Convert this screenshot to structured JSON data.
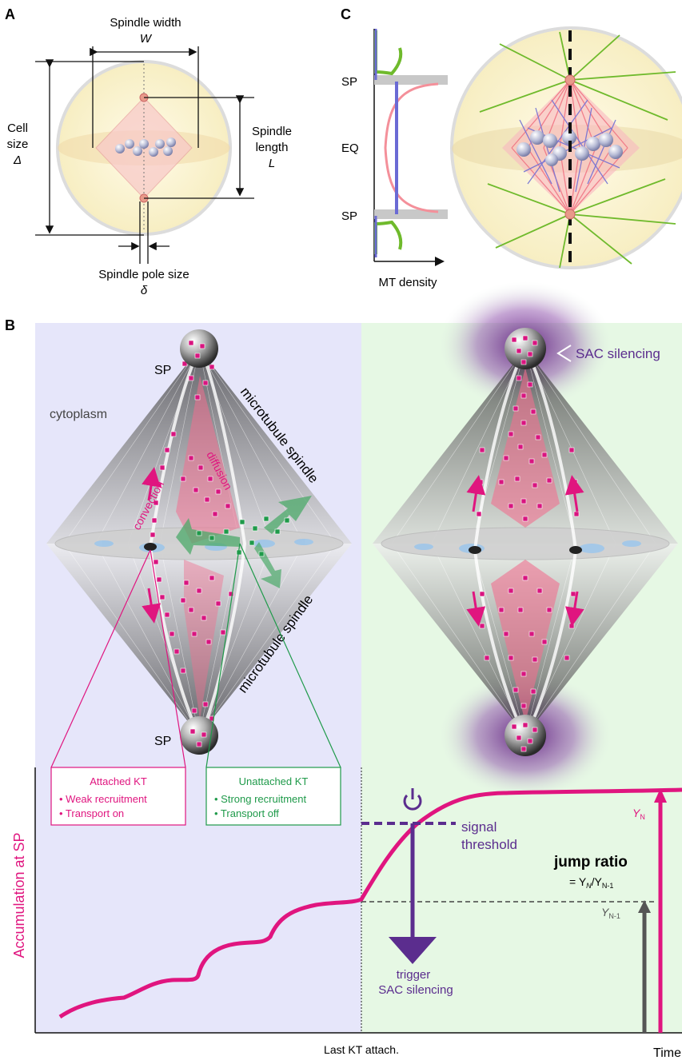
{
  "colors": {
    "magenta": "#e0157f",
    "green": "#1f9a4a",
    "purple": "#5b2d8e",
    "panel_left_bg": "#e4e4f8",
    "panel_right_bg": "#e4f6e4",
    "cell_fill": "#fbf3d4",
    "spindle_pink": "#f4a5b3",
    "blue_mt": "#6a6ad4",
    "green_mt": "#6fba2c"
  },
  "panelA": {
    "label": "A",
    "spindle_width": "Spindle width",
    "spindle_width_symbol": "W",
    "cell_size": "Cell",
    "cell_size2": "size",
    "cell_size_symbol": "Δ",
    "spindle_length": "Spindle",
    "spindle_length2": "length",
    "spindle_length_symbol": "L",
    "pole_size": "Spindle pole size",
    "pole_size_symbol": "δ"
  },
  "panelC": {
    "label": "C",
    "sp_top": "SP",
    "eq": "EQ",
    "sp_bottom": "SP",
    "x_label": "MT density"
  },
  "panelB": {
    "label": "B",
    "sp_top": "SP",
    "sp_bottom": "SP",
    "cytoplasm": "cytoplasm",
    "mt_spindle_top": "microtubule spindle",
    "mt_spindle_bottom": "microtubule spindle",
    "convection": "convection",
    "diffusion": "diffusion",
    "sac_silencing": "SAC silencing",
    "attached": {
      "title": "Attached KT",
      "line1": "• Weak recruitment",
      "line2": "• Transport on"
    },
    "unattached": {
      "title": "Unattached KT",
      "line1": "• Strong recruitment",
      "line2": "• Transport off"
    },
    "y_axis": "Accumulation at SP",
    "x_last": "Last KT attach.",
    "x_time": "Time",
    "signal": "signal",
    "threshold": "threshold",
    "jump_ratio": "jump ratio",
    "eq_prefix": "= Y",
    "eq_sub_n": "N",
    "eq_mid": "/Y",
    "eq_sub_n1": "N-1",
    "yn": "Y",
    "yn_sub": "N",
    "yn1": "Y",
    "yn1_sub": "N-1",
    "trigger": "trigger",
    "sac": "SAC silencing"
  }
}
